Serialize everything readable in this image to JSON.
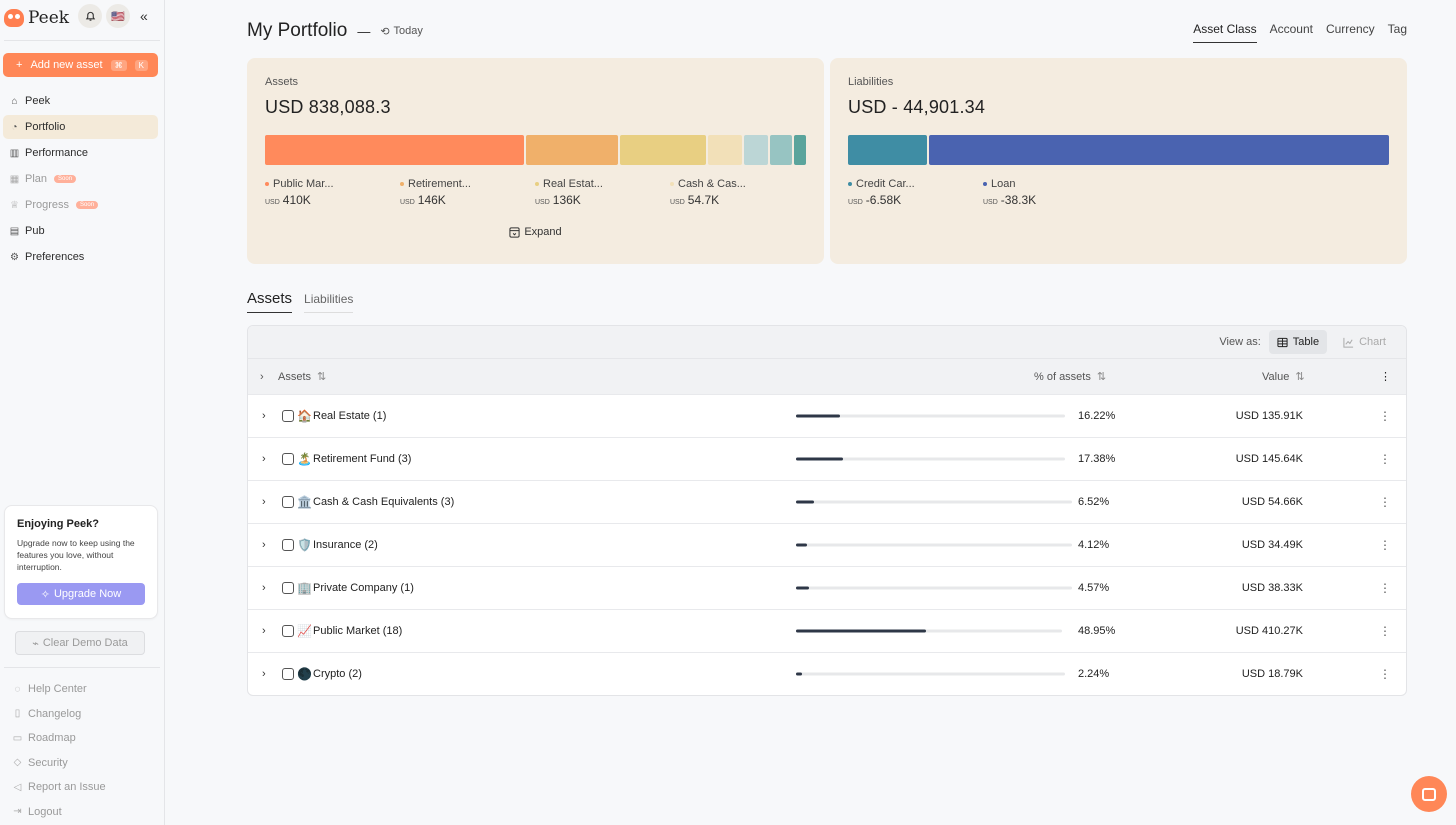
{
  "sidebar": {
    "logo_text": "Peek",
    "flag": "🇺🇸",
    "add_asset": {
      "label": "Add new asset",
      "kbd1": "⌘",
      "kbd2": "K"
    },
    "nav": [
      {
        "label": "Peek",
        "icon": "home-icon",
        "glyph": "⌂"
      },
      {
        "label": "Portfolio",
        "icon": "pie-icon",
        "glyph": "◔",
        "active": true
      },
      {
        "label": "Performance",
        "icon": "bar-chart-icon",
        "glyph": "▥"
      },
      {
        "label": "Plan",
        "icon": "calendar-icon",
        "glyph": "▦",
        "badge": "Soon"
      },
      {
        "label": "Progress",
        "icon": "trophy-icon",
        "glyph": "♕",
        "badge": "Soon"
      },
      {
        "label": "Pub",
        "icon": "pub-icon",
        "glyph": "▤"
      },
      {
        "label": "Preferences",
        "icon": "gear-icon",
        "glyph": "⚙"
      }
    ],
    "promo": {
      "title": "Enjoying Peek?",
      "text": "Upgrade now to keep using the features you love, without interruption.",
      "button": "Upgrade Now"
    },
    "clear_demo": "Clear Demo Data",
    "footer": [
      {
        "label": "Help Center",
        "icon": "help-icon",
        "glyph": "◌"
      },
      {
        "label": "Changelog",
        "icon": "changelog-icon",
        "glyph": "▯"
      },
      {
        "label": "Roadmap",
        "icon": "map-icon",
        "glyph": "▭"
      },
      {
        "label": "Security",
        "icon": "shield-icon",
        "glyph": "◇"
      },
      {
        "label": "Report an Issue",
        "icon": "megaphone-icon",
        "glyph": "◁"
      },
      {
        "label": "Logout",
        "icon": "logout-icon",
        "glyph": "⇥"
      }
    ]
  },
  "header": {
    "title": "My Portfolio",
    "dash": "—",
    "date_label": "Today",
    "group_tabs": [
      "Asset Class",
      "Account",
      "Currency",
      "Tag"
    ],
    "active_group_tab": "Asset Class"
  },
  "assets_card": {
    "label": "Assets",
    "total": "USD 838,088.3",
    "segments": [
      {
        "share": 48.95,
        "color": "#ff8a5c"
      },
      {
        "share": 17.38,
        "color": "#f0b06a"
      },
      {
        "share": 16.22,
        "color": "#e8cf82"
      },
      {
        "share": 6.52,
        "color": "#f2e0b8"
      },
      {
        "share": 4.57,
        "color": "#bcd6d6"
      },
      {
        "share": 4.12,
        "color": "#97c4c2"
      },
      {
        "share": 2.24,
        "color": "#5aa49c"
      }
    ],
    "legend": [
      {
        "name": "Public Mar...",
        "currency": "USD",
        "value": "410K",
        "color": "#ff8a5c"
      },
      {
        "name": "Retirement...",
        "currency": "USD",
        "value": "146K",
        "color": "#f0b06a"
      },
      {
        "name": "Real Estat...",
        "currency": "USD",
        "value": "136K",
        "color": "#e8cf82"
      },
      {
        "name": "Cash & Cas...",
        "currency": "USD",
        "value": "54.7K",
        "color": "#f2e0b8"
      }
    ],
    "expand_label": "Expand"
  },
  "liabilities_card": {
    "label": "Liabilities",
    "total": "USD - 44,901.34",
    "segments": [
      {
        "share": 14.7,
        "color": "#3f8da4"
      },
      {
        "share": 85.3,
        "color": "#4a63b0"
      }
    ],
    "legend": [
      {
        "name": "Credit Car...",
        "currency": "USD",
        "value": "-6.58K",
        "color": "#3f8da4"
      },
      {
        "name": "Loan",
        "currency": "USD",
        "value": "-38.3K",
        "color": "#4a63b0"
      }
    ]
  },
  "section_tabs": [
    "Assets",
    "Liabilities"
  ],
  "table": {
    "view_as_label": "View as:",
    "view_table": "Table",
    "view_chart": "Chart",
    "columns": {
      "name": "Assets",
      "percent": "% of assets",
      "value": "Value"
    },
    "rows": [
      {
        "emoji": "🏠",
        "name": "Real Estate (1)",
        "pct": 16.22,
        "pct_label": "16.22%",
        "value": "USD 135.91K"
      },
      {
        "emoji": "🏝️",
        "name": "Retirement Fund (3)",
        "pct": 17.38,
        "pct_label": "17.38%",
        "value": "USD 145.64K"
      },
      {
        "emoji": "🏛️",
        "name": "Cash & Cash Equivalents (3)",
        "pct": 6.52,
        "pct_label": "6.52%",
        "value": "USD 54.66K"
      },
      {
        "emoji": "🛡️",
        "name": "Insurance (2)",
        "pct": 4.12,
        "pct_label": "4.12%",
        "value": "USD 34.49K"
      },
      {
        "emoji": "🏢",
        "name": "Private Company (1)",
        "pct": 4.57,
        "pct_label": "4.57%",
        "value": "USD 38.33K"
      },
      {
        "emoji": "📈",
        "name": "Public Market (18)",
        "pct": 48.95,
        "pct_label": "48.95%",
        "value": "USD 410.27K"
      },
      {
        "emoji": "🌑",
        "name": "Crypto (2)",
        "pct": 2.24,
        "pct_label": "2.24%",
        "value": "USD 18.79K"
      }
    ]
  }
}
